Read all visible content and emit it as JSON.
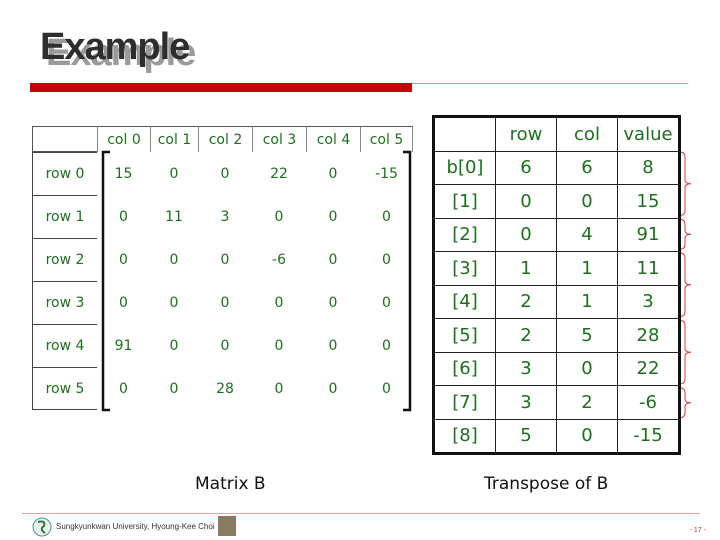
{
  "title": "Example",
  "matrix": {
    "caption": "Matrix B",
    "col_headers": [
      "col 0",
      "col 1",
      "col 2",
      "col 3",
      "col 4",
      "col 5"
    ],
    "row_headers": [
      "row 0",
      "row 1",
      "row 2",
      "row 3",
      "row 4",
      "row 5"
    ],
    "values": [
      [
        "15",
        "0",
        "0",
        "22",
        "0",
        "-15"
      ],
      [
        "0",
        "11",
        "3",
        "0",
        "0",
        "0"
      ],
      [
        "0",
        "0",
        "0",
        "-6",
        "0",
        "0"
      ],
      [
        "0",
        "0",
        "0",
        "0",
        "0",
        "0"
      ],
      [
        "91",
        "0",
        "0",
        "0",
        "0",
        "0"
      ],
      [
        "0",
        "0",
        "28",
        "0",
        "0",
        "0"
      ]
    ]
  },
  "transpose": {
    "caption": "Transpose of B",
    "headers": [
      "",
      "row",
      "col",
      "value"
    ],
    "rows": [
      [
        "b[0]",
        "6",
        "6",
        "8"
      ],
      [
        "[1]",
        "0",
        "0",
        "15"
      ],
      [
        "[2]",
        "0",
        "4",
        "91"
      ],
      [
        "[3]",
        "1",
        "1",
        "11"
      ],
      [
        "[4]",
        "2",
        "1",
        "3"
      ],
      [
        "[5]",
        "2",
        "5",
        "28"
      ],
      [
        "[6]",
        "3",
        "0",
        "22"
      ],
      [
        "[7]",
        "3",
        "2",
        "-6"
      ],
      [
        "[8]",
        "5",
        "0",
        "-15"
      ]
    ]
  },
  "footer": {
    "text": "Sungkyunkwan University, Hyoung-Kee Choi",
    "page": "- 17 -"
  },
  "colors": {
    "accent": "#c8000a",
    "text": "#1f6e1f",
    "brace": "#d04040"
  }
}
